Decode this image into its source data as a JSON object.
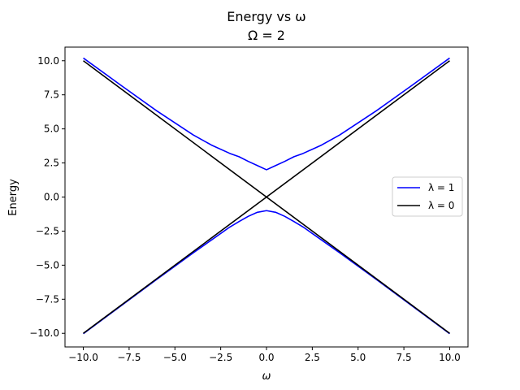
{
  "chart_data": {
    "type": "line",
    "title": "Energy vs ω",
    "subtitle": "Ω = 2",
    "xlabel": "ω",
    "ylabel": "Energy",
    "xlim": [
      -11,
      11
    ],
    "ylim": [
      -11,
      11
    ],
    "xticks": [
      -10,
      -7.5,
      -5,
      -2.5,
      0,
      2.5,
      5,
      7.5,
      10
    ],
    "xtick_labels": [
      "−10.0",
      "−7.5",
      "−5.0",
      "−2.5",
      "0.0",
      "2.5",
      "5.0",
      "7.5",
      "10.0"
    ],
    "yticks": [
      -10,
      -7.5,
      -5,
      -2.5,
      0,
      2.5,
      5,
      7.5,
      10
    ],
    "ytick_labels": [
      "−10.0",
      "−7.5",
      "−5.0",
      "−2.5",
      "0.0",
      "2.5",
      "5.0",
      "7.5",
      "10.0"
    ],
    "grid": false,
    "legend_position": "center-right",
    "series": [
      {
        "name": "λ = 1",
        "color": "#0000ff",
        "branches": [
          {
            "x": [
              -10,
              -8,
              -6,
              -4,
              -3,
              -2,
              -1.5,
              -1,
              -0.5,
              0,
              0.5,
              1,
              1.5,
              2,
              3,
              4,
              6,
              8,
              10
            ],
            "y": [
              10.2,
              8.25,
              6.33,
              4.56,
              3.81,
              3.2,
              2.96,
              2.62,
              2.31,
              2.0,
              2.31,
              2.62,
              2.96,
              3.2,
              3.81,
              4.56,
              6.33,
              8.25,
              10.2
            ]
          },
          {
            "x": [
              -10,
              -8,
              -6,
              -4,
              -3,
              -2,
              -1.5,
              -1,
              -0.5,
              0,
              0.5,
              1,
              1.5,
              2,
              3,
              4,
              6,
              8,
              10
            ],
            "y": [
              -10.03,
              -8.04,
              -6.05,
              -4.1,
              -3.15,
              -2.2,
              -1.8,
              -1.42,
              -1.12,
              -1.0,
              -1.12,
              -1.42,
              -1.8,
              -2.2,
              -3.15,
              -4.1,
              -6.05,
              -8.04,
              -10.03
            ]
          }
        ]
      },
      {
        "name": "λ = 0",
        "color": "#000000",
        "branches": [
          {
            "x": [
              -10,
              10
            ],
            "y": [
              10,
              -10
            ]
          },
          {
            "x": [
              -10,
              10
            ],
            "y": [
              -10,
              10
            ]
          }
        ]
      }
    ]
  }
}
